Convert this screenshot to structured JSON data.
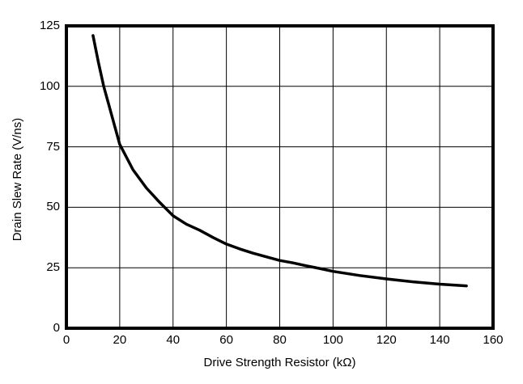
{
  "page": {
    "background_color": "#ffffff"
  },
  "chart_data": {
    "type": "line",
    "title": "",
    "xlabel": "Drive Strength Resistor (kΩ)",
    "ylabel": "Drain Slew Rate (V/ns)",
    "xlim": [
      0,
      160
    ],
    "ylim": [
      0,
      125
    ],
    "x_ticks": [
      0,
      20,
      40,
      60,
      80,
      100,
      120,
      140,
      160
    ],
    "y_ticks": [
      0,
      25,
      50,
      75,
      100,
      125
    ],
    "grid": true,
    "legend_position": "none",
    "frame_color": "#000000",
    "grid_color": "#000000",
    "tick_label_color": "#000000",
    "series": [
      {
        "name": "drain-slew-rate-vs-drive-strength-resistor",
        "color": "#000000",
        "line_width": 3.5,
        "points": [
          [
            10,
            121
          ],
          [
            12,
            110
          ],
          [
            14,
            100
          ],
          [
            16,
            92
          ],
          [
            18,
            84
          ],
          [
            20,
            76
          ],
          [
            25,
            65.5
          ],
          [
            30,
            58
          ],
          [
            35,
            52
          ],
          [
            40,
            46.5
          ],
          [
            45,
            43
          ],
          [
            50,
            40.5
          ],
          [
            55,
            37.5
          ],
          [
            60,
            34.8
          ],
          [
            65,
            32.8
          ],
          [
            70,
            31
          ],
          [
            75,
            29.5
          ],
          [
            80,
            28
          ],
          [
            85,
            27
          ],
          [
            90,
            25.8
          ],
          [
            95,
            24.7
          ],
          [
            100,
            23.5
          ],
          [
            110,
            21.8
          ],
          [
            120,
            20.4
          ],
          [
            130,
            19.2
          ],
          [
            140,
            18.2
          ],
          [
            150,
            17.5
          ]
        ]
      }
    ]
  }
}
